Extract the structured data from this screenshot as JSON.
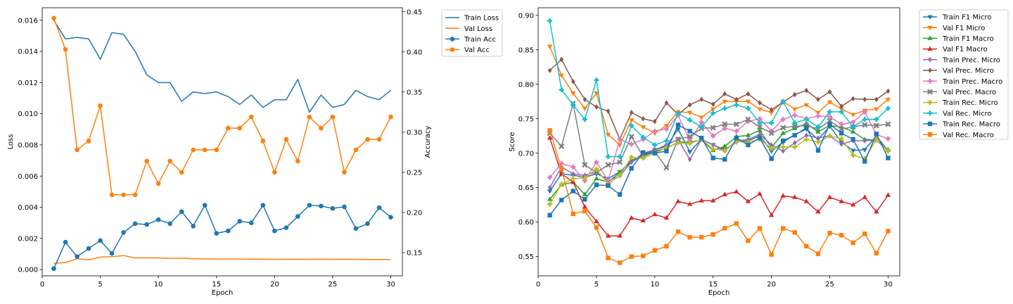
{
  "figure": {
    "charts": [
      {
        "xlabel": "Epoch",
        "ylabel_left": "Loss",
        "ylabel_right": "Accuracy",
        "legend": [
          "Train Loss",
          "Val Loss",
          "Train Acc",
          "Val Acc"
        ]
      },
      {
        "xlabel": "Epoch",
        "ylabel": "Score",
        "legend": [
          "Train F1 Micro",
          "Val F1 Micro",
          "Train F1 Macro",
          "Val F1 Macro",
          "Train Prec. Micro",
          "Val Prec. Micro",
          "Train Prec. Macro",
          "Val Prec. Macro",
          "Train Rec. Micro",
          "Val Rec. Micro",
          "Train Rec. Macro",
          "Val Rec. Macro"
        ]
      }
    ]
  },
  "chart_data": [
    {
      "type": "line",
      "x": [
        1,
        2,
        3,
        4,
        5,
        6,
        7,
        8,
        9,
        10,
        11,
        12,
        13,
        14,
        15,
        16,
        17,
        18,
        19,
        20,
        21,
        22,
        23,
        24,
        25,
        26,
        27,
        28,
        29,
        30
      ],
      "xlabel": "Epoch",
      "xlim": [
        0,
        31
      ],
      "xticks": [
        0,
        5,
        10,
        15,
        20,
        25,
        30
      ],
      "ylabel": "Loss",
      "ylim": [
        -0.0004,
        0.0168
      ],
      "yticks": [
        0.0,
        0.002,
        0.004,
        0.006,
        0.008,
        0.01,
        0.012,
        0.014,
        0.016
      ],
      "ytick_labels": [
        "0.000",
        "0.002",
        "0.004",
        "0.006",
        "0.008",
        "0.010",
        "0.012",
        "0.014",
        "0.016"
      ],
      "y2label": "Accuracy",
      "y2lim": [
        0.121,
        0.455
      ],
      "y2ticks": [
        0.15,
        0.2,
        0.25,
        0.3,
        0.35,
        0.4,
        0.45
      ],
      "y2tick_labels": [
        "0.15",
        "0.20",
        "0.25",
        "0.30",
        "0.35",
        "0.40",
        "0.45"
      ],
      "grid": false,
      "legend_position": "outside-right",
      "series": [
        {
          "name": "Train Loss",
          "axis": "left",
          "color": "#1f77b4",
          "marker": "none",
          "values": [
            0.016,
            0.0148,
            0.0149,
            0.0148,
            0.0135,
            0.0152,
            0.0151,
            0.014,
            0.0125,
            0.012,
            0.012,
            0.0108,
            0.0114,
            0.0113,
            0.0114,
            0.0111,
            0.0106,
            0.0112,
            0.0104,
            0.0109,
            0.0109,
            0.0122,
            0.0101,
            0.0112,
            0.0104,
            0.0106,
            0.0115,
            0.0111,
            0.0109,
            0.0115
          ]
        },
        {
          "name": "Val Loss",
          "axis": "left",
          "color": "#ff7f0e",
          "marker": "none",
          "values": [
            0.0004,
            0.00045,
            0.0007,
            0.00062,
            0.0008,
            0.00083,
            0.0009,
            0.00075,
            0.00075,
            0.00075,
            0.00072,
            0.00073,
            0.0007,
            0.00069,
            0.00068,
            0.00068,
            0.00068,
            0.00067,
            0.00067,
            0.00066,
            0.00066,
            0.00066,
            0.00066,
            0.00067,
            0.00066,
            0.00066,
            0.00066,
            0.00065,
            0.00065,
            0.00065
          ]
        },
        {
          "name": "Train Acc",
          "axis": "right",
          "color": "#1f77b4",
          "marker": "circle",
          "values": [
            0.13,
            0.163,
            0.145,
            0.155,
            0.165,
            0.149,
            0.175,
            0.186,
            0.185,
            0.191,
            0.186,
            0.201,
            0.183,
            0.209,
            0.174,
            0.177,
            0.189,
            0.187,
            0.209,
            0.177,
            0.181,
            0.195,
            0.209,
            0.208,
            0.205,
            0.207,
            0.18,
            0.186,
            0.206,
            0.194
          ]
        },
        {
          "name": "Val Acc",
          "axis": "right",
          "color": "#ff7f0e",
          "marker": "circle",
          "values": [
            0.442,
            0.403,
            0.278,
            0.289,
            0.333,
            0.222,
            0.222,
            0.222,
            0.264,
            0.236,
            0.264,
            0.25,
            0.278,
            0.278,
            0.278,
            0.305,
            0.305,
            0.319,
            0.289,
            0.25,
            0.291,
            0.264,
            0.319,
            0.305,
            0.319,
            0.25,
            0.278,
            0.291,
            0.291,
            0.319
          ]
        }
      ]
    },
    {
      "type": "line",
      "x": [
        1,
        2,
        3,
        4,
        5,
        6,
        7,
        8,
        9,
        10,
        11,
        12,
        13,
        14,
        15,
        16,
        17,
        18,
        19,
        20,
        21,
        22,
        23,
        24,
        25,
        26,
        27,
        28,
        29,
        30
      ],
      "xlabel": "Epoch",
      "xlim": [
        0,
        31
      ],
      "xticks": [
        0,
        5,
        10,
        15,
        20,
        25,
        30
      ],
      "ylabel": "Score",
      "ylim": [
        0.522,
        0.911
      ],
      "yticks": [
        0.55,
        0.6,
        0.65,
        0.7,
        0.75,
        0.8,
        0.85,
        0.9
      ],
      "ytick_labels": [
        "0.55",
        "0.60",
        "0.65",
        "0.70",
        "0.75",
        "0.80",
        "0.85",
        "0.90"
      ],
      "grid": false,
      "legend_position": "outside-right",
      "series": [
        {
          "name": "Train F1 Micro",
          "color": "#1f77b4",
          "marker": "triangle-down",
          "values": [
            0.645,
            0.67,
            0.668,
            0.665,
            0.67,
            0.663,
            0.673,
            0.687,
            0.697,
            0.705,
            0.71,
            0.735,
            0.702,
            0.72,
            0.712,
            0.705,
            0.716,
            0.718,
            0.725,
            0.703,
            0.716,
            0.727,
            0.735,
            0.72,
            0.739,
            0.716,
            0.704,
            0.705,
            0.725,
            0.703
          ]
        },
        {
          "name": "Val F1 Micro",
          "color": "#ff7f0e",
          "marker": "triangle-down",
          "values": [
            0.855,
            0.813,
            0.787,
            0.765,
            0.787,
            0.727,
            0.712,
            0.748,
            0.738,
            0.729,
            0.74,
            0.76,
            0.759,
            0.752,
            0.764,
            0.775,
            0.775,
            0.775,
            0.764,
            0.759,
            0.775,
            0.764,
            0.77,
            0.759,
            0.774,
            0.764,
            0.756,
            0.762,
            0.764,
            0.778
          ]
        },
        {
          "name": "Train F1 Macro",
          "color": "#2ca02c",
          "marker": "triangle-up",
          "values": [
            0.633,
            0.654,
            0.658,
            0.64,
            0.663,
            0.658,
            0.672,
            0.69,
            0.696,
            0.703,
            0.707,
            0.716,
            0.716,
            0.719,
            0.704,
            0.71,
            0.724,
            0.726,
            0.733,
            0.708,
            0.729,
            0.736,
            0.743,
            0.731,
            0.74,
            0.738,
            0.731,
            0.72,
            0.719,
            0.705
          ]
        },
        {
          "name": "Val F1 Macro",
          "color": "#d62728",
          "marker": "triangle-up",
          "values": [
            0.722,
            0.67,
            0.658,
            0.622,
            0.601,
            0.58,
            0.58,
            0.606,
            0.602,
            0.611,
            0.606,
            0.63,
            0.626,
            0.631,
            0.631,
            0.64,
            0.644,
            0.63,
            0.641,
            0.61,
            0.638,
            0.636,
            0.63,
            0.615,
            0.636,
            0.63,
            0.625,
            0.636,
            0.615,
            0.639
          ]
        },
        {
          "name": "Train Prec. Micro",
          "color": "#9467bd",
          "marker": "diamond",
          "values": [
            0.65,
            0.68,
            0.67,
            0.668,
            0.672,
            0.66,
            0.667,
            0.687,
            0.7,
            0.705,
            0.712,
            0.72,
            0.691,
            0.72,
            0.712,
            0.703,
            0.718,
            0.72,
            0.727,
            0.712,
            0.703,
            0.715,
            0.726,
            0.722,
            0.725,
            0.713,
            0.718,
            0.718,
            0.719,
            0.703
          ]
        },
        {
          "name": "Val Prec. Micro",
          "color": "#8c564b",
          "marker": "diamond",
          "values": [
            0.82,
            0.836,
            0.804,
            0.778,
            0.767,
            0.761,
            0.72,
            0.759,
            0.75,
            0.746,
            0.773,
            0.756,
            0.77,
            0.778,
            0.771,
            0.786,
            0.778,
            0.786,
            0.773,
            0.763,
            0.774,
            0.785,
            0.791,
            0.778,
            0.789,
            0.768,
            0.779,
            0.778,
            0.778,
            0.79
          ]
        },
        {
          "name": "Train Prec. Macro",
          "color": "#e377c2",
          "marker": "plus",
          "values": [
            0.665,
            0.685,
            0.68,
            0.66,
            0.687,
            0.66,
            0.72,
            0.713,
            0.72,
            0.732,
            0.735,
            0.755,
            0.718,
            0.745,
            0.725,
            0.736,
            0.732,
            0.746,
            0.75,
            0.732,
            0.749,
            0.755,
            0.75,
            0.754,
            0.753,
            0.742,
            0.745,
            0.76,
            0.727,
            0.721
          ]
        },
        {
          "name": "Val Prec. Macro",
          "color": "#7f7f7f",
          "marker": "x",
          "values": [
            0.729,
            0.71,
            0.772,
            0.683,
            0.672,
            0.683,
            0.687,
            0.724,
            0.695,
            0.702,
            0.679,
            0.72,
            0.724,
            0.736,
            0.737,
            0.742,
            0.742,
            0.749,
            0.738,
            0.729,
            0.737,
            0.739,
            0.74,
            0.735,
            0.747,
            0.735,
            0.738,
            0.741,
            0.74,
            0.742
          ]
        },
        {
          "name": "Train Rec. Micro",
          "color": "#bcbd22",
          "marker": "plus",
          "values": [
            0.626,
            0.655,
            0.663,
            0.664,
            0.677,
            0.655,
            0.668,
            0.694,
            0.693,
            0.7,
            0.708,
            0.715,
            0.714,
            0.72,
            0.706,
            0.704,
            0.717,
            0.716,
            0.72,
            0.707,
            0.709,
            0.709,
            0.72,
            0.716,
            0.725,
            0.721,
            0.697,
            0.692,
            0.72,
            0.703
          ]
        },
        {
          "name": "Val Rec. Micro",
          "color": "#17becf",
          "marker": "plus",
          "values": [
            0.892,
            0.792,
            0.77,
            0.749,
            0.806,
            0.695,
            0.695,
            0.74,
            0.723,
            0.712,
            0.718,
            0.758,
            0.748,
            0.738,
            0.758,
            0.765,
            0.77,
            0.765,
            0.744,
            0.744,
            0.775,
            0.744,
            0.749,
            0.738,
            0.76,
            0.76,
            0.738,
            0.749,
            0.749,
            0.765
          ]
        },
        {
          "name": "Train Rec. Macro",
          "color": "#1f77b4",
          "marker": "square",
          "values": [
            0.61,
            0.632,
            0.645,
            0.633,
            0.654,
            0.653,
            0.64,
            0.678,
            0.701,
            0.7,
            0.703,
            0.741,
            0.732,
            0.722,
            0.693,
            0.691,
            0.722,
            0.712,
            0.722,
            0.692,
            0.718,
            0.726,
            0.737,
            0.704,
            0.742,
            0.729,
            0.72,
            0.688,
            0.728,
            0.693
          ]
        },
        {
          "name": "Val Rec. Macro",
          "color": "#ff7f0e",
          "marker": "square",
          "values": [
            0.733,
            0.677,
            0.612,
            0.616,
            0.592,
            0.548,
            0.541,
            0.55,
            0.551,
            0.559,
            0.565,
            0.586,
            0.578,
            0.578,
            0.582,
            0.591,
            0.598,
            0.573,
            0.591,
            0.553,
            0.591,
            0.585,
            0.565,
            0.554,
            0.584,
            0.581,
            0.57,
            0.583,
            0.555,
            0.587
          ]
        }
      ]
    }
  ]
}
